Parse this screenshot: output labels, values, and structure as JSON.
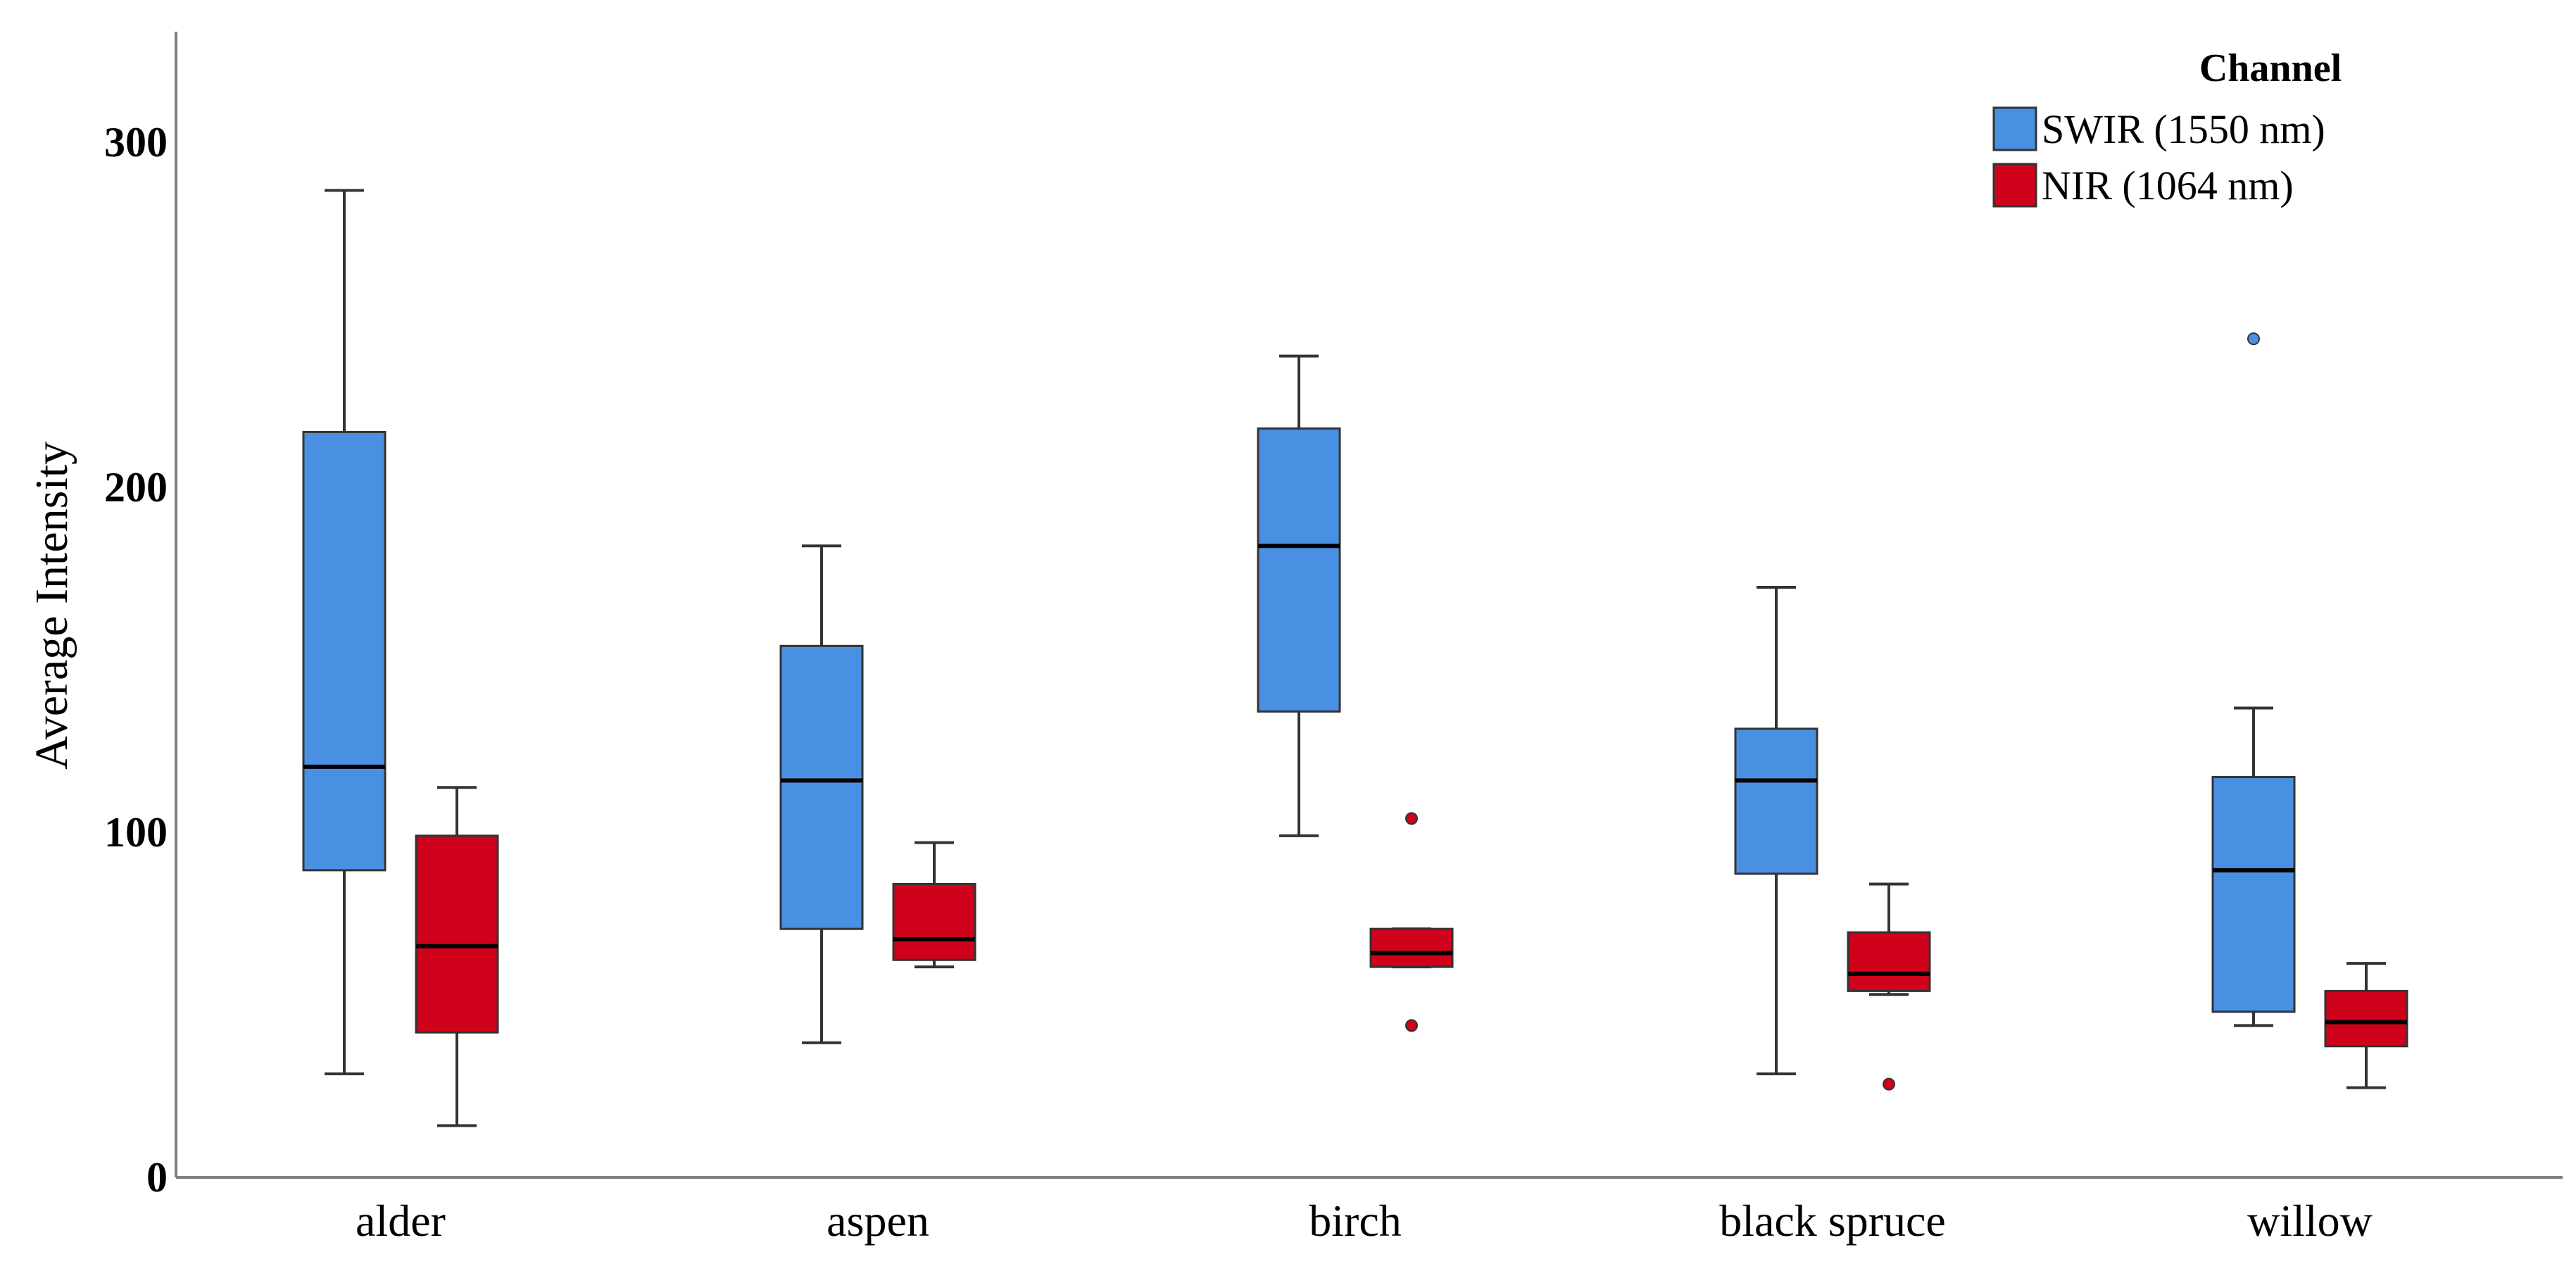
{
  "chart_data": {
    "type": "box",
    "title": "",
    "xlabel": "",
    "ylabel": "Average Intensity",
    "ylim": [
      0,
      332
    ],
    "yticks": [
      0,
      100,
      200,
      300
    ],
    "grid": false,
    "legend": {
      "title": "Channel",
      "placement": "top-right"
    },
    "categories": [
      "alder",
      "aspen",
      "birch",
      "black spruce",
      "willow"
    ],
    "series": [
      {
        "name": "SWIR (1550 nm)",
        "color": "#4a90e2",
        "boxes": [
          {
            "min": 30,
            "q1": 89,
            "median": 119,
            "q3": 216,
            "max": 286,
            "outliers": []
          },
          {
            "min": 39,
            "q1": 72,
            "median": 115,
            "q3": 154,
            "max": 183,
            "outliers": []
          },
          {
            "min": 99,
            "q1": 135,
            "median": 183,
            "q3": 217,
            "max": 238,
            "outliers": []
          },
          {
            "min": 30,
            "q1": 88,
            "median": 115,
            "q3": 130,
            "max": 171,
            "outliers": []
          },
          {
            "min": 44,
            "q1": 48,
            "median": 89,
            "q3": 116,
            "max": 136,
            "outliers": [
              243
            ]
          }
        ]
      },
      {
        "name": "NIR (1064 nm)",
        "color": "#d0021b",
        "boxes": [
          {
            "min": 15,
            "q1": 42,
            "median": 67,
            "q3": 99,
            "max": 113,
            "outliers": []
          },
          {
            "min": 61,
            "q1": 63,
            "median": 69,
            "q3": 85,
            "max": 97,
            "outliers": []
          },
          {
            "min": 61,
            "q1": 61,
            "median": 65,
            "q3": 72,
            "max": 72,
            "outliers": [
              104,
              44
            ]
          },
          {
            "min": 53,
            "q1": 54,
            "median": 59,
            "q3": 71,
            "max": 85,
            "outliers": [
              27
            ]
          },
          {
            "min": 26,
            "q1": 38,
            "median": 45,
            "q3": 54,
            "max": 62,
            "outliers": []
          }
        ]
      }
    ]
  }
}
